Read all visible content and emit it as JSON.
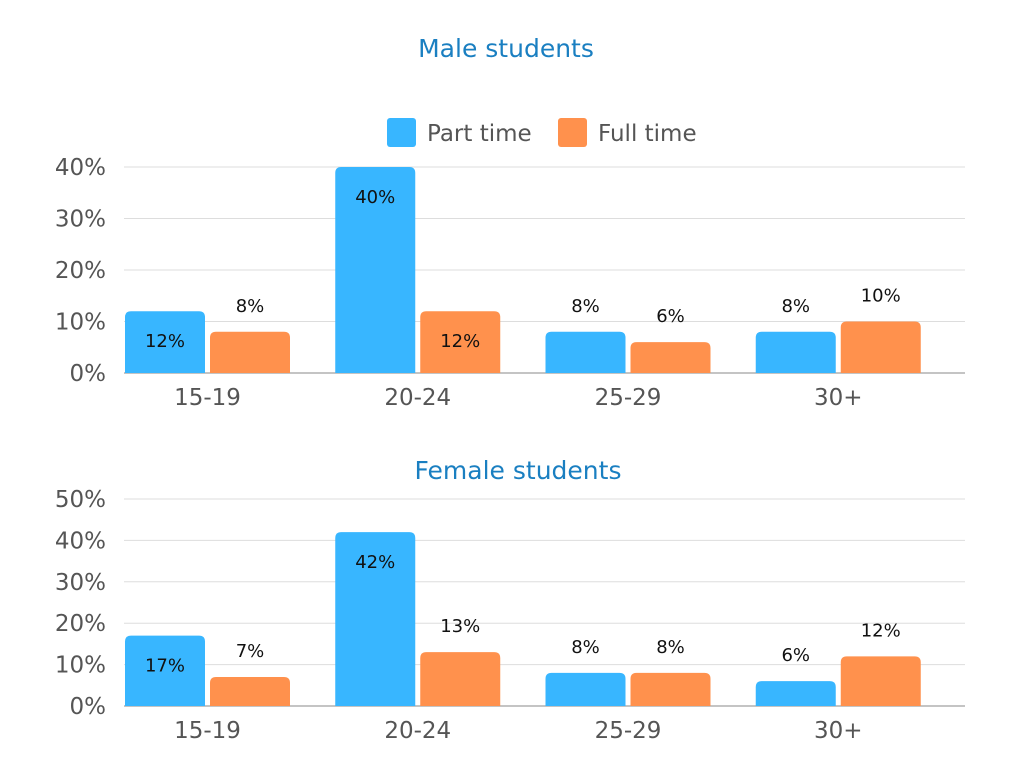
{
  "chart_data": [
    {
      "type": "bar",
      "title": "Male students",
      "categories": [
        "15-19",
        "20-24",
        "25-29",
        "30+"
      ],
      "series": [
        {
          "name": "Part time",
          "values": [
            12,
            40,
            8,
            8
          ],
          "labels": [
            "12%",
            "40%",
            "8%",
            "8%"
          ]
        },
        {
          "name": "Full time",
          "values": [
            8,
            12,
            6,
            10
          ],
          "labels": [
            "8%",
            "12%",
            "6%",
            "10%"
          ]
        }
      ],
      "yticks": [
        "0%",
        "10%",
        "20%",
        "30%",
        "40%"
      ],
      "ylim": [
        0,
        40
      ],
      "legend": "top-center",
      "grid": true
    },
    {
      "type": "bar",
      "title": "Female students",
      "categories": [
        "15-19",
        "20-24",
        "25-29",
        "30+"
      ],
      "series": [
        {
          "name": "Part time",
          "values": [
            17,
            42,
            8,
            6
          ],
          "labels": [
            "17%",
            "42%",
            "8%",
            "6%"
          ]
        },
        {
          "name": "Full time",
          "values": [
            7,
            13,
            8,
            12
          ],
          "labels": [
            "7%",
            "13%",
            "8%",
            "12%"
          ]
        }
      ],
      "yticks": [
        "0%",
        "10%",
        "20%",
        "30%",
        "40%",
        "50%"
      ],
      "ylim": [
        0,
        50
      ],
      "legend": "none",
      "grid": true
    }
  ],
  "colors": {
    "part_time": "#38b6ff",
    "full_time": "#ff914d",
    "title": "#1a7fc1"
  }
}
